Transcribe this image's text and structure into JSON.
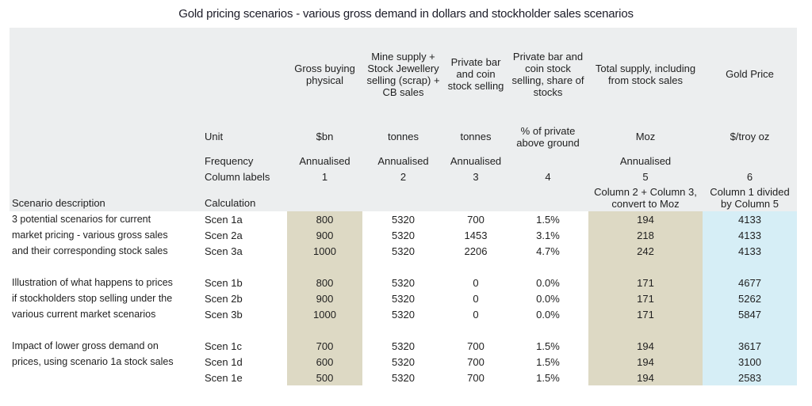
{
  "title": "Gold pricing scenarios - various gross demand in dollars and stockholder sales scenarios",
  "colors": {
    "header_background": "#eceeef",
    "tan_highlight": "#ddd9c4",
    "blue_highlight": "#d6eef6"
  },
  "table": {
    "column_headers": [
      "",
      "",
      "Gross buying physical",
      "Mine supply + Stock Jewellery selling (scrap) + CB sales",
      "Private bar and coin stock selling",
      "Private bar and coin stock selling, share of stocks",
      "Total supply, including from stock sales",
      "Gold Price"
    ],
    "unit_row": {
      "label": "Unit",
      "values": [
        "$bn",
        "tonnes",
        "tonnes",
        "% of private above ground",
        "Moz",
        "$/troy oz"
      ]
    },
    "frequency_row": {
      "label": "Frequency",
      "values": [
        "Annualised",
        "Annualised",
        "Annualised",
        "",
        "Annualised",
        ""
      ]
    },
    "column_labels_row": {
      "label": "Column labels",
      "values": [
        "1",
        "2",
        "3",
        "4",
        "5",
        "6"
      ]
    },
    "calculation_row": {
      "scenario_header": "Scenario description",
      "label": "Calculation",
      "values": [
        "",
        "",
        "",
        "",
        "Column 2 + Column 3, convert to Moz",
        "Column 1 divided by Column 5"
      ]
    },
    "groups": [
      {
        "description": [
          "3 potential scenarios for current",
          "market pricing - various gross sales",
          "and their corresponding stock sales"
        ],
        "rows": [
          {
            "calc": "Scen 1a",
            "values": [
              "800",
              "5320",
              "700",
              "1.5%",
              "194",
              "4133"
            ]
          },
          {
            "calc": "Scen 2a",
            "values": [
              "900",
              "5320",
              "1453",
              "3.1%",
              "218",
              "4133"
            ]
          },
          {
            "calc": "Scen 3a",
            "values": [
              "1000",
              "5320",
              "2206",
              "4.7%",
              "242",
              "4133"
            ]
          }
        ]
      },
      {
        "description": [
          "Illustration of what happens to prices",
          "if stockholders stop selling under the",
          "various current market scenarios"
        ],
        "rows": [
          {
            "calc": "Scen 1b",
            "values": [
              "800",
              "5320",
              "0",
              "0.0%",
              "171",
              "4677"
            ]
          },
          {
            "calc": "Scen 2b",
            "values": [
              "900",
              "5320",
              "0",
              "0.0%",
              "171",
              "5262"
            ]
          },
          {
            "calc": "Scen 3b",
            "values": [
              "1000",
              "5320",
              "0",
              "0.0%",
              "171",
              "5847"
            ]
          }
        ]
      },
      {
        "description": [
          "Impact of lower gross demand on",
          "prices, using scenario 1a stock sales",
          ""
        ],
        "rows": [
          {
            "calc": "Scen 1c",
            "values": [
              "700",
              "5320",
              "700",
              "1.5%",
              "194",
              "3617"
            ]
          },
          {
            "calc": "Scen 1d",
            "values": [
              "600",
              "5320",
              "700",
              "1.5%",
              "194",
              "3100"
            ]
          },
          {
            "calc": "Scen 1e",
            "values": [
              "500",
              "5320",
              "700",
              "1.5%",
              "194",
              "2583"
            ]
          }
        ]
      }
    ]
  }
}
